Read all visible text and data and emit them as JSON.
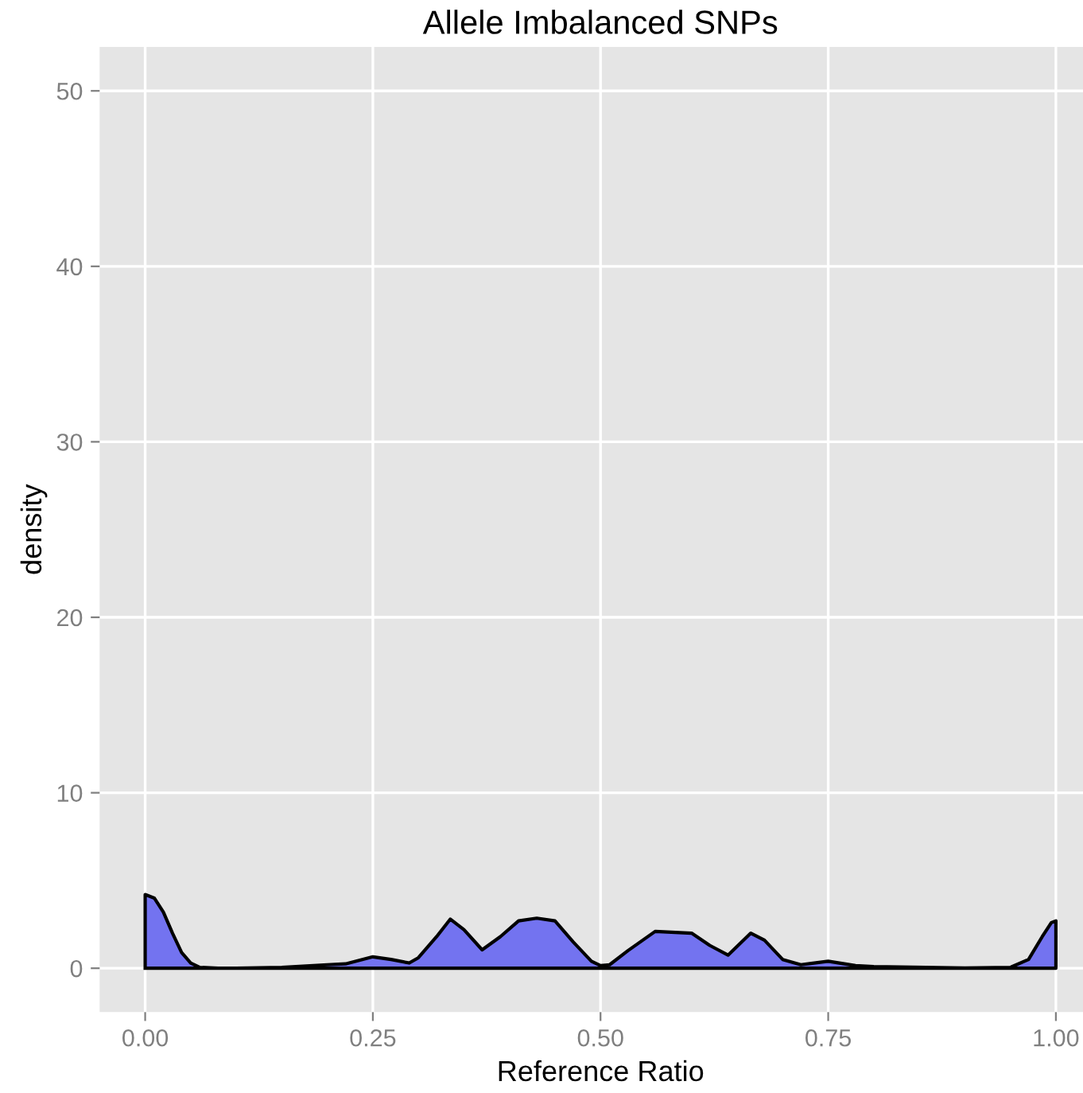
{
  "chart_data": {
    "type": "area",
    "title": "Allele Imbalanced SNPs",
    "xlabel": "Reference Ratio",
    "ylabel": "density",
    "x": [
      0,
      0.01,
      0.02,
      0.03,
      0.04,
      0.05,
      0.06,
      0.08,
      0.1,
      0.15,
      0.2,
      0.22,
      0.25,
      0.27,
      0.29,
      0.3,
      0.32,
      0.335,
      0.35,
      0.37,
      0.39,
      0.41,
      0.43,
      0.45,
      0.47,
      0.49,
      0.5,
      0.51,
      0.53,
      0.56,
      0.6,
      0.62,
      0.64,
      0.665,
      0.68,
      0.7,
      0.72,
      0.75,
      0.78,
      0.8,
      0.9,
      0.95,
      0.97,
      0.985,
      0.995,
      1.0
    ],
    "series": [
      {
        "color": "#7373f0",
        "values": [
          4.2,
          4.0,
          3.2,
          2.0,
          0.9,
          0.3,
          0.05,
          0,
          0,
          0.05,
          0.2,
          0.25,
          0.65,
          0.5,
          0.3,
          0.6,
          1.8,
          2.8,
          2.2,
          1.05,
          1.8,
          2.7,
          2.85,
          2.7,
          1.5,
          0.4,
          0.15,
          0.2,
          1.0,
          2.1,
          2.0,
          1.3,
          0.75,
          2.0,
          1.6,
          0.5,
          0.2,
          0.4,
          0.15,
          0.1,
          0.02,
          0.05,
          0.5,
          1.8,
          2.6,
          2.7
        ]
      }
    ],
    "xlim": [
      -0.05,
      1.05
    ],
    "ylim": [
      -2.5,
      52.5
    ],
    "xticks": [
      {
        "value": 0,
        "label": "0.00"
      },
      {
        "value": 0.25,
        "label": "0.25"
      },
      {
        "value": 0.5,
        "label": "0.50"
      },
      {
        "value": 0.75,
        "label": "0.75"
      },
      {
        "value": 1,
        "label": "1.00"
      }
    ],
    "yticks": [
      0,
      10,
      20,
      30,
      40,
      50
    ],
    "grid": true,
    "legend": false
  }
}
